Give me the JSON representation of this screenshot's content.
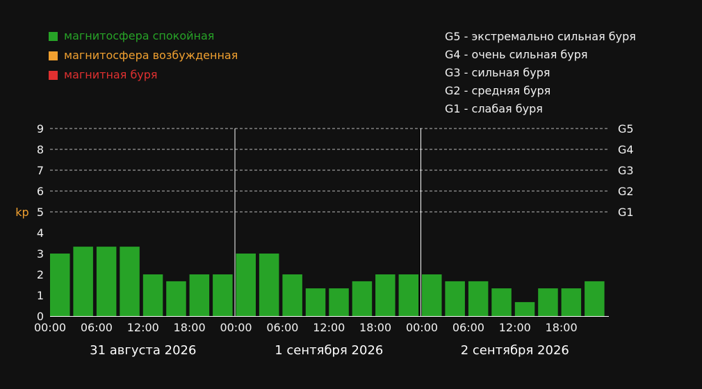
{
  "chart_data": {
    "type": "bar",
    "ylabel": "kp",
    "ylim": [
      0,
      9
    ],
    "yticks": [
      "0",
      "1",
      "2",
      "3",
      "4",
      "5",
      "6",
      "7",
      "8",
      "9"
    ],
    "grid": "dashed horizontal lines at 5–9",
    "legend": [
      {
        "label": "магнитосфера спокойная",
        "color": "#27a327"
      },
      {
        "label": "магнитосфера возбужденная",
        "color": "#f0a030"
      },
      {
        "label": "магнитная буря",
        "color": "#e03030"
      }
    ],
    "storm_legend": [
      "G5 - экстремально сильная буря",
      "G4 - очень сильная буря",
      "G3 - сильная буря",
      "G2 - средняя буря",
      "G1 - слабая буря"
    ],
    "storm_levels": [
      {
        "kp": 9,
        "label": "G5"
      },
      {
        "kp": 8,
        "label": "G4"
      },
      {
        "kp": 7,
        "label": "G3"
      },
      {
        "kp": 6,
        "label": "G2"
      },
      {
        "kp": 5,
        "label": "G1"
      }
    ],
    "days": [
      {
        "label": "31 августа 2026",
        "ticks": [
          "00:00",
          "06:00",
          "12:00",
          "18:00"
        ],
        "values": [
          3,
          3.33,
          3.33,
          3.33,
          2,
          1.67,
          2,
          2
        ]
      },
      {
        "label": "1 сентября 2026",
        "ticks": [
          "00:00",
          "06:00",
          "12:00",
          "18:00"
        ],
        "values": [
          3,
          3,
          2,
          1.33,
          1.33,
          1.67,
          2,
          2
        ]
      },
      {
        "label": "2 сентября 2026",
        "ticks": [
          "00:00",
          "06:00",
          "12:00",
          "18:00"
        ],
        "values": [
          2,
          1.67,
          1.67,
          1.33,
          0.67,
          1.33,
          1.33,
          1.67
        ]
      }
    ],
    "bar_color": "#27a327"
  }
}
